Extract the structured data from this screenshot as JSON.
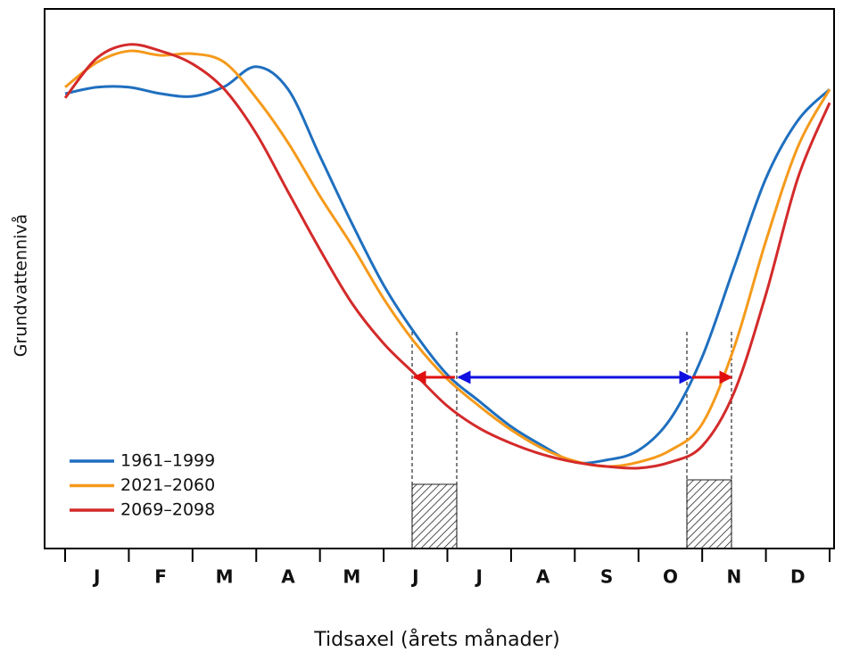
{
  "chart_data": {
    "type": "line",
    "x_label": "Tidsaxel (årets månader)",
    "y_label": "Grundvattennivå",
    "categories": [
      "J",
      "F",
      "M",
      "A",
      "M",
      "J",
      "J",
      "A",
      "S",
      "O",
      "N",
      "D"
    ],
    "x": [
      0,
      0.5,
      1,
      1.5,
      2,
      2.5,
      3,
      3.5,
      4,
      4.5,
      5,
      5.5,
      6,
      6.5,
      7,
      7.5,
      8,
      8.5,
      9,
      9.5,
      10,
      10.5,
      11,
      11.5,
      12
    ],
    "xlim": [
      0,
      12
    ],
    "xticks": [
      0,
      1,
      2,
      3,
      4,
      5,
      6,
      7,
      8,
      9,
      10,
      11,
      12
    ],
    "ylim": [
      0,
      100
    ],
    "series": [
      {
        "name": "1961–1999",
        "color": "#1f6fbf",
        "values": [
          84.3,
          85.5,
          85.5,
          84.3,
          83.8,
          85.6,
          89.3,
          85.1,
          72.7,
          60.3,
          48.8,
          39.7,
          32.2,
          27.3,
          22.6,
          19.0,
          16.0,
          16.4,
          18.2,
          24.0,
          35.5,
          52.1,
          68.6,
          79.3,
          85.1
        ]
      },
      {
        "name": "2021–2060",
        "color": "#f59a1b",
        "values": [
          85.5,
          90.1,
          92.2,
          91.4,
          91.7,
          90.1,
          83.5,
          75.2,
          65.3,
          56.2,
          46.3,
          38.0,
          31.4,
          26.4,
          22.0,
          18.5,
          16.2,
          15.2,
          16.0,
          18.2,
          23.1,
          37.2,
          57.0,
          74.4,
          85.1
        ]
      },
      {
        "name": "2069–2098",
        "color": "#d42a2a",
        "values": [
          83.5,
          90.9,
          93.4,
          92.2,
          89.8,
          85.1,
          76.9,
          66.1,
          55.4,
          45.5,
          38.0,
          32.2,
          26.4,
          22.3,
          19.5,
          17.4,
          16.0,
          15.2,
          14.9,
          16.0,
          19.0,
          28.9,
          47.1,
          68.6,
          82.6
        ]
      }
    ]
  }
}
